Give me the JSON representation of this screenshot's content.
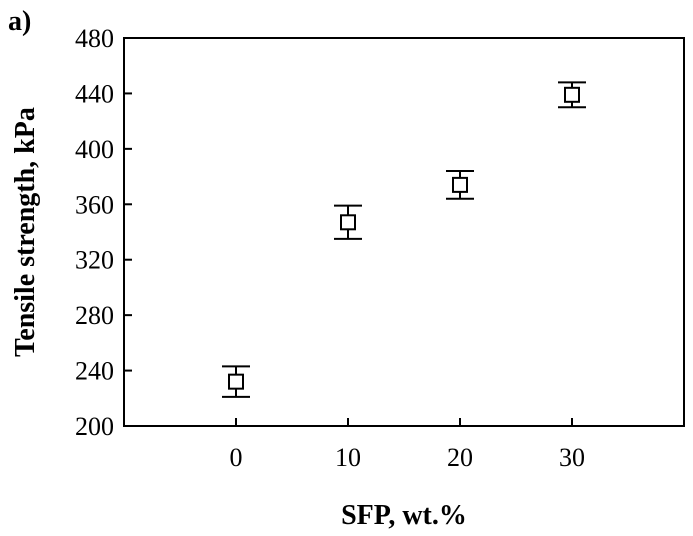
{
  "chart_data": {
    "type": "scatter",
    "panel_label": "a)",
    "title": "",
    "xlabel": "SFP, wt.%",
    "ylabel": "Tensile strength, kPa",
    "x": [
      0,
      10,
      20,
      30
    ],
    "y": [
      232,
      347,
      374,
      439
    ],
    "error": [
      11,
      12,
      10,
      9
    ],
    "xlim": [
      -10,
      40
    ],
    "ylim": [
      200,
      480
    ],
    "xticks": [
      "0",
      "10",
      "20",
      "30"
    ],
    "yticks": [
      "200",
      "240",
      "280",
      "320",
      "360",
      "400",
      "440",
      "480"
    ],
    "marker": "hollow-square",
    "grid": false,
    "legend": "none",
    "colors": {
      "marker": "#000000",
      "axis": "#000000"
    }
  }
}
